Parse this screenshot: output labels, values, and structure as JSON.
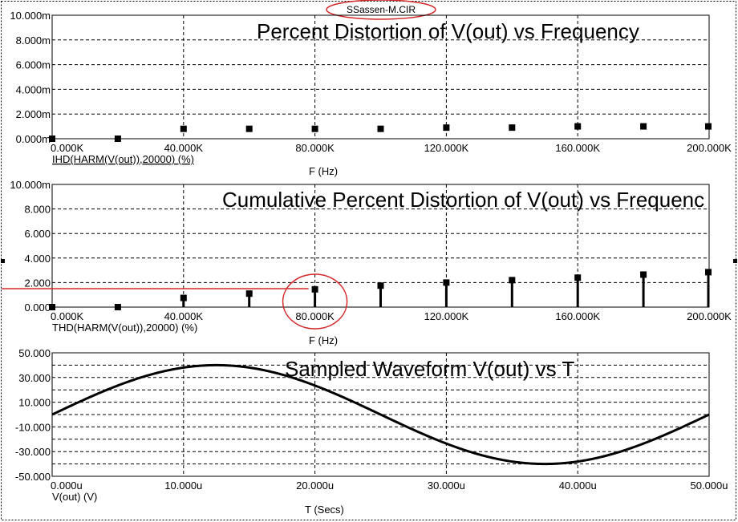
{
  "file_title": "SSassen-M.CIR",
  "chart_data": [
    {
      "type": "bar",
      "title": "Percent Distortion of V(out) vs Frequency",
      "xlabel": "F (Hz)",
      "trace_label": "IHD(HARM(V(out)),20000) (%)",
      "xlim": [
        0,
        200000
      ],
      "ylim": [
        0,
        0.01
      ],
      "x_ticks": [
        "0.000K",
        "40.000K",
        "80.000K",
        "120.000K",
        "160.000K",
        "200.000K"
      ],
      "y_ticks": [
        "0.000m",
        "2.000m",
        "4.000m",
        "6.000m",
        "8.000m",
        "10.000m"
      ],
      "x": [
        0,
        20000,
        40000,
        60000,
        80000,
        100000,
        120000,
        140000,
        160000,
        180000,
        200000
      ],
      "values": [
        0,
        0,
        0.0008,
        0.0008,
        0.0008,
        0.0008,
        0.0009,
        0.0009,
        0.001,
        0.001,
        0.001
      ],
      "grid": true
    },
    {
      "type": "bar",
      "title": "Cumulative Percent Distortion of V(out) vs Frequenc",
      "xlabel": "F (Hz)",
      "trace_label": "THD(HARM(V(out)),20000) (%)",
      "xlim": [
        0,
        200000
      ],
      "ylim": [
        0,
        10
      ],
      "x_ticks": [
        "0.000K",
        "40.000K",
        "80.000K",
        "120.000K",
        "160.000K",
        "200.000K"
      ],
      "y_ticks": [
        "0.000",
        "2.000",
        "4.000",
        "6.000",
        "8.000",
        "10.000m"
      ],
      "x": [
        0,
        20000,
        40000,
        60000,
        80000,
        100000,
        120000,
        140000,
        160000,
        180000,
        200000
      ],
      "values": [
        0,
        0,
        0.75,
        1.1,
        1.45,
        1.75,
        2.0,
        2.2,
        2.4,
        2.65,
        2.85
      ],
      "highlight": {
        "marker_x": 80000,
        "level": 1.5
      },
      "grid": true
    },
    {
      "type": "line",
      "title": "Sampled Waveform  V(out) vs T",
      "xlabel": "T (Secs)",
      "trace_label": "V(out) (V)",
      "xlim": [
        0,
        5e-05
      ],
      "ylim": [
        -50,
        50
      ],
      "x_ticks": [
        "0.000u",
        "10.000u",
        "20.000u",
        "30.000u",
        "40.000u",
        "50.000u"
      ],
      "y_ticks": [
        "50.000",
        "30.000",
        "10.000",
        "-10.000",
        "-30.000",
        "-50.000"
      ],
      "series": [
        {
          "amplitude": 40,
          "period": 5e-05,
          "offset": 0
        }
      ],
      "grid": true
    }
  ],
  "colors": {
    "trace": "#000000",
    "highlight": "#d42a2a",
    "grid": "#000000"
  }
}
